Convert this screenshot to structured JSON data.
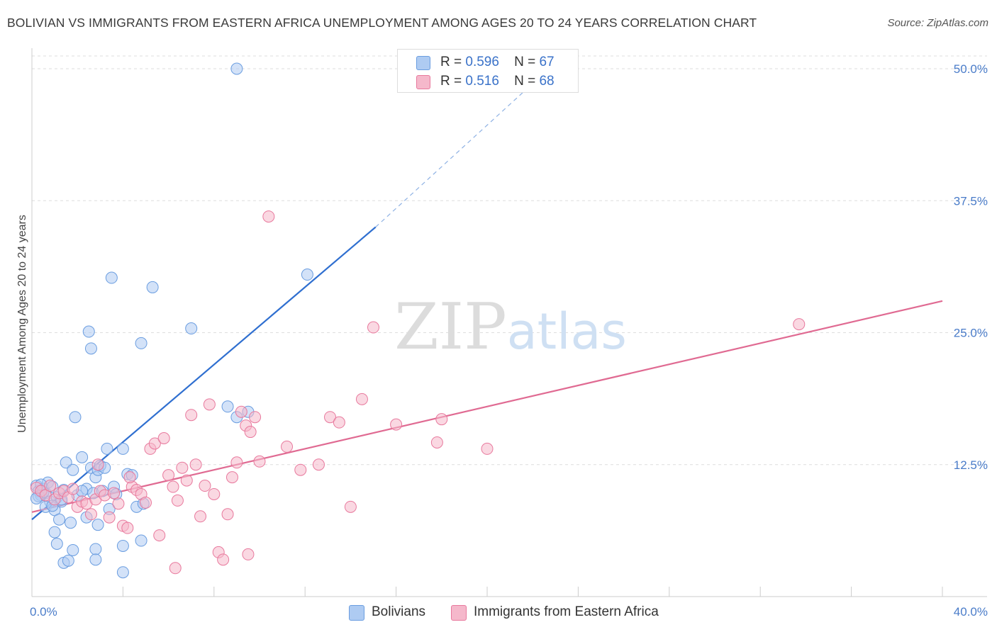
{
  "chart_data": {
    "type": "scatter",
    "title": "BOLIVIAN VS IMMIGRANTS FROM EASTERN AFRICA UNEMPLOYMENT AMONG AGES 20 TO 24 YEARS CORRELATION CHART",
    "source": "Source: ZipAtlas.com",
    "watermark": "ZIPatlas",
    "ylabel": "Unemployment Among Ages 20 to 24 years",
    "xlim": [
      0,
      40
    ],
    "ylim": [
      0,
      50
    ],
    "x_tick_labels": [
      "0.0%",
      "40.0%"
    ],
    "y_ticks": [
      12.5,
      25.0,
      37.5,
      50.0
    ],
    "y_tick_labels": [
      "12.5%",
      "25.0%",
      "37.5%",
      "50.0%"
    ],
    "grid": true,
    "legend": [
      {
        "r_label": "R =",
        "r_value": "0.596",
        "n_label": "N =",
        "n_value": "67"
      },
      {
        "r_label": "R =",
        "r_value": "0.516",
        "n_label": "N =",
        "n_value": "68"
      }
    ],
    "series": [
      {
        "name": "Bolivians",
        "color": "#6a9de0",
        "fill": "#aecbf2",
        "trend": {
          "x0": 0.0,
          "y0": 7.3,
          "x1": 15.1,
          "y1": 35.0,
          "dash_x1": 22.0,
          "dash_y1": 48.6
        },
        "points": [
          [
            0.2,
            10.5
          ],
          [
            0.3,
            10.0
          ],
          [
            0.4,
            9.6
          ],
          [
            0.5,
            10.2
          ],
          [
            0.6,
            9.8
          ],
          [
            0.3,
            9.5
          ],
          [
            0.7,
            10.8
          ],
          [
            0.8,
            9.0
          ],
          [
            0.6,
            8.5
          ],
          [
            0.9,
            10.4
          ],
          [
            1.0,
            8.2
          ],
          [
            1.1,
            9.4
          ],
          [
            1.3,
            9.0
          ],
          [
            1.4,
            10.1
          ],
          [
            1.2,
            7.3
          ],
          [
            1.5,
            12.7
          ],
          [
            1.8,
            12.0
          ],
          [
            2.0,
            9.6
          ],
          [
            1.9,
            17.0
          ],
          [
            2.2,
            13.2
          ],
          [
            2.4,
            10.2
          ],
          [
            2.6,
            12.2
          ],
          [
            2.7,
            9.8
          ],
          [
            2.8,
            11.3
          ],
          [
            2.9,
            12.0
          ],
          [
            3.0,
            12.4
          ],
          [
            3.2,
            12.2
          ],
          [
            3.1,
            10.0
          ],
          [
            3.3,
            14.0
          ],
          [
            3.4,
            8.3
          ],
          [
            3.5,
            30.2
          ],
          [
            3.6,
            10.4
          ],
          [
            3.7,
            9.7
          ],
          [
            2.5,
            25.1
          ],
          [
            2.6,
            23.5
          ],
          [
            4.0,
            14.0
          ],
          [
            4.2,
            11.6
          ],
          [
            4.4,
            11.5
          ],
          [
            4.6,
            8.5
          ],
          [
            4.9,
            8.8
          ],
          [
            5.3,
            29.3
          ],
          [
            4.8,
            24.0
          ],
          [
            7.0,
            25.4
          ],
          [
            8.6,
            18.0
          ],
          [
            9.0,
            17.0
          ],
          [
            9.5,
            17.5
          ],
          [
            9.0,
            50.0
          ],
          [
            12.1,
            30.5
          ],
          [
            1.0,
            6.1
          ],
          [
            1.1,
            5.0
          ],
          [
            1.8,
            4.4
          ],
          [
            1.4,
            3.2
          ],
          [
            1.6,
            3.4
          ],
          [
            2.8,
            4.5
          ],
          [
            2.8,
            3.5
          ],
          [
            4.0,
            4.8
          ],
          [
            4.8,
            5.3
          ],
          [
            4.0,
            2.3
          ],
          [
            2.9,
            6.8
          ],
          [
            2.4,
            7.5
          ],
          [
            1.7,
            7.0
          ],
          [
            1.3,
            9.2
          ],
          [
            0.9,
            8.6
          ],
          [
            0.5,
            9.9
          ],
          [
            0.4,
            10.6
          ],
          [
            0.2,
            9.3
          ],
          [
            2.2,
            10.0
          ]
        ]
      },
      {
        "name": "Immigrants from Eastern Africa",
        "color": "#e8799d",
        "fill": "#f5b8cb",
        "trend": {
          "x0": 0.0,
          "y0": 8.0,
          "x1": 40.0,
          "y1": 28.0
        },
        "points": [
          [
            0.2,
            10.3
          ],
          [
            0.4,
            10.0
          ],
          [
            0.6,
            9.6
          ],
          [
            0.8,
            10.5
          ],
          [
            1.0,
            9.2
          ],
          [
            1.2,
            9.8
          ],
          [
            1.4,
            10.0
          ],
          [
            1.6,
            9.4
          ],
          [
            1.8,
            10.2
          ],
          [
            2.0,
            8.5
          ],
          [
            2.2,
            9.0
          ],
          [
            2.4,
            8.8
          ],
          [
            2.6,
            7.8
          ],
          [
            2.8,
            9.2
          ],
          [
            3.0,
            10.0
          ],
          [
            3.2,
            9.6
          ],
          [
            3.4,
            7.5
          ],
          [
            3.6,
            9.8
          ],
          [
            3.8,
            8.8
          ],
          [
            4.0,
            6.7
          ],
          [
            4.2,
            6.5
          ],
          [
            4.4,
            10.4
          ],
          [
            4.6,
            10.1
          ],
          [
            4.8,
            9.7
          ],
          [
            5.0,
            8.9
          ],
          [
            5.2,
            14.0
          ],
          [
            5.4,
            14.5
          ],
          [
            5.6,
            5.8
          ],
          [
            5.8,
            15.0
          ],
          [
            6.0,
            11.5
          ],
          [
            6.2,
            10.4
          ],
          [
            6.4,
            9.1
          ],
          [
            6.6,
            12.2
          ],
          [
            6.8,
            11.0
          ],
          [
            7.0,
            17.2
          ],
          [
            7.2,
            12.5
          ],
          [
            7.4,
            7.6
          ],
          [
            7.6,
            10.5
          ],
          [
            7.8,
            18.2
          ],
          [
            8.0,
            9.7
          ],
          [
            8.2,
            4.2
          ],
          [
            8.4,
            3.5
          ],
          [
            8.6,
            7.8
          ],
          [
            8.8,
            11.3
          ],
          [
            9.0,
            12.7
          ],
          [
            9.2,
            17.5
          ],
          [
            9.4,
            16.2
          ],
          [
            9.6,
            15.6
          ],
          [
            9.8,
            17.0
          ],
          [
            10.0,
            12.8
          ],
          [
            10.4,
            36.0
          ],
          [
            11.2,
            14.2
          ],
          [
            11.8,
            12.0
          ],
          [
            12.6,
            12.5
          ],
          [
            13.1,
            17.0
          ],
          [
            13.5,
            16.5
          ],
          [
            14.0,
            8.5
          ],
          [
            14.5,
            18.7
          ],
          [
            15.0,
            25.5
          ],
          [
            16.0,
            16.3
          ],
          [
            17.8,
            14.6
          ],
          [
            18.0,
            16.8
          ],
          [
            20.0,
            14.0
          ],
          [
            33.7,
            25.8
          ],
          [
            6.3,
            2.7
          ],
          [
            9.5,
            4.0
          ],
          [
            4.3,
            11.3
          ],
          [
            2.9,
            12.5
          ]
        ]
      }
    ]
  },
  "bottom_legend": {
    "bolivians": "Bolivians",
    "eastern_africa": "Immigrants from Eastern Africa"
  }
}
